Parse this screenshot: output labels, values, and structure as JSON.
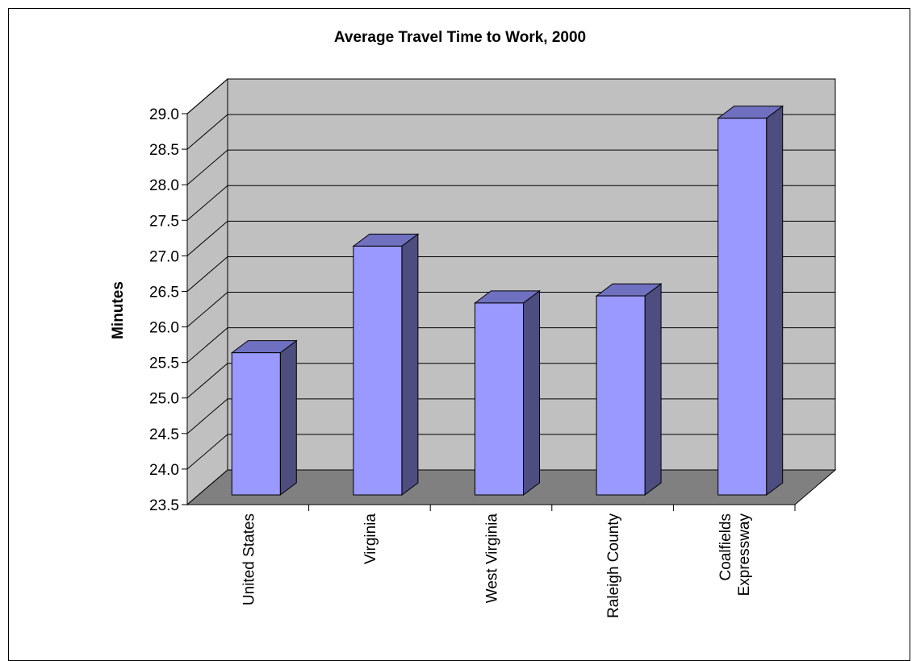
{
  "chart_data": {
    "type": "bar",
    "title": "Average Travel Time to Work, 2000",
    "xlabel": "",
    "ylabel": "Minutes",
    "ylim": [
      23.5,
      29.0
    ],
    "yticks": [
      "23.5",
      "24.0",
      "24.5",
      "25.0",
      "25.5",
      "26.0",
      "26.5",
      "27.0",
      "27.5",
      "28.0",
      "28.5",
      "29.0"
    ],
    "categories": [
      [
        "United States"
      ],
      [
        "Virginia"
      ],
      [
        "West Virginia"
      ],
      [
        "Raleigh County"
      ],
      [
        "Coalfields",
        "Expressway"
      ]
    ],
    "values": [
      25.5,
      27.0,
      26.2,
      26.3,
      28.8
    ],
    "grid": true,
    "style": "3d",
    "colors": {
      "bar_front": "#9999ff",
      "bar_side": "#4d4d80",
      "bar_top": "#7070c0",
      "back_wall": "#c0c0c0",
      "floor": "#808080",
      "grid": "#000000"
    }
  }
}
